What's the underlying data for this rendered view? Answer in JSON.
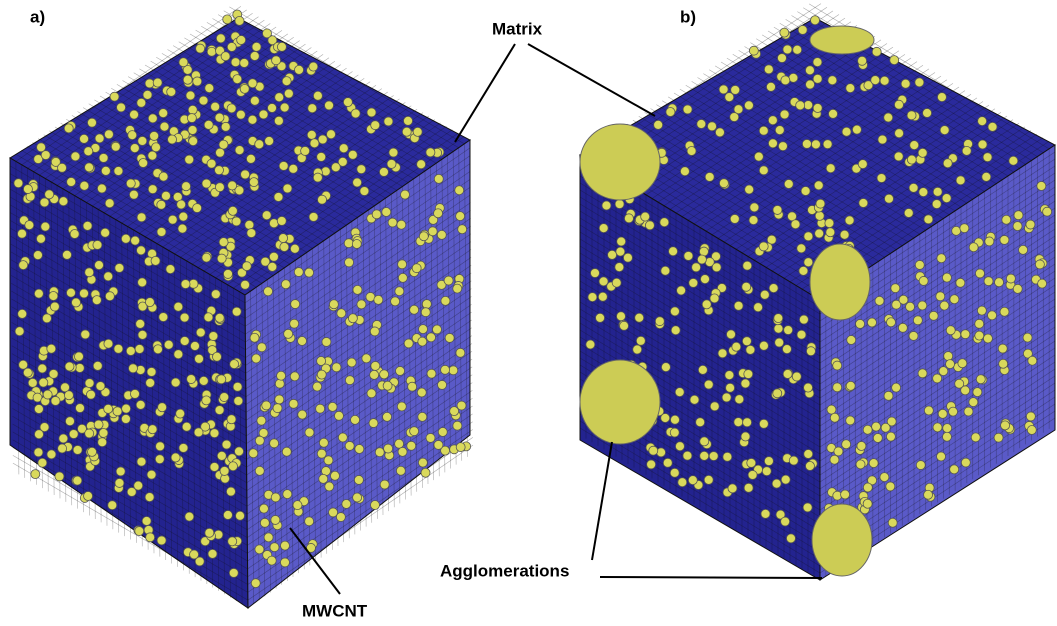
{
  "panels": [
    {
      "label": "a)"
    },
    {
      "label": "b)"
    }
  ],
  "annotations": {
    "matrix": "Matrix",
    "mwcnt": "MWCNT",
    "agglomerations": "Agglomerations"
  }
}
